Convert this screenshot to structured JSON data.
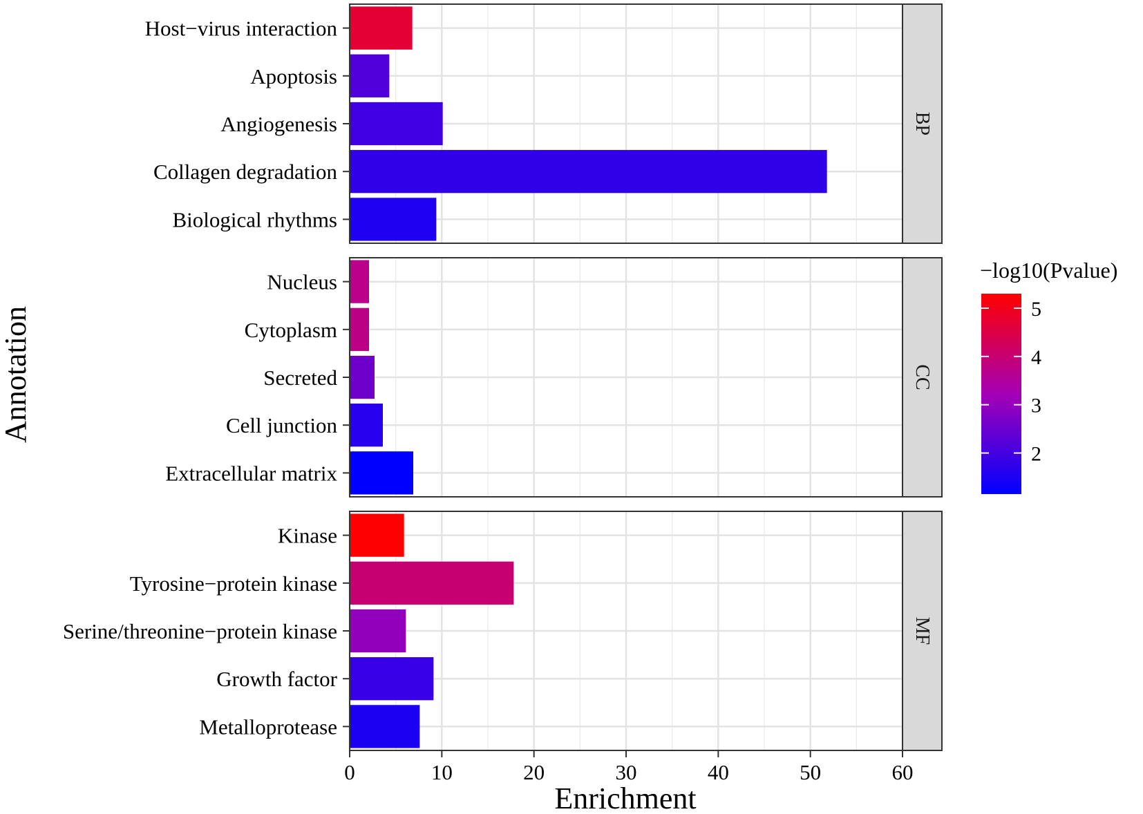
{
  "chart_data": {
    "type": "bar",
    "orientation": "horizontal",
    "xlabel": "Enrichment",
    "ylabel": "Annotation",
    "xlim": [
      0,
      60
    ],
    "xticks": [
      0,
      10,
      20,
      30,
      40,
      50,
      60
    ],
    "grid": true,
    "legend": {
      "title": "−log10(Pvalue)",
      "placement": "right",
      "range": [
        1.15,
        5.3
      ],
      "ticks": [
        2,
        3,
        4,
        5
      ],
      "colors": {
        "low": "#0000ff",
        "high": "#ff0000"
      }
    },
    "facets": [
      {
        "label": "BP",
        "categories": [
          "Host−virus interaction",
          "Apoptosis",
          "Angiogenesis",
          "Collagen degradation",
          "Biological rhythms"
        ],
        "values": [
          6.8,
          4.3,
          10.1,
          51.8,
          9.4
        ],
        "neg_log10_p": [
          4.7,
          2.15,
          1.95,
          1.75,
          1.55
        ]
      },
      {
        "label": "CC",
        "categories": [
          "Nucleus",
          "Cytoplasm",
          "Secreted",
          "Cell junction",
          "Extracellular matrix"
        ],
        "values": [
          2.1,
          2.1,
          2.7,
          3.6,
          6.9
        ],
        "neg_log10_p": [
          3.7,
          3.75,
          2.55,
          1.65,
          1.15
        ]
      },
      {
        "label": "MF",
        "categories": [
          "Kinase",
          "Tyrosine−protein kinase",
          "Serine/threonine−protein kinase",
          "Growth factor",
          "Metalloprotease"
        ],
        "values": [
          5.9,
          17.8,
          6.1,
          9.1,
          7.6
        ],
        "neg_log10_p": [
          5.3,
          4.0,
          3.0,
          1.85,
          1.5
        ]
      }
    ]
  }
}
